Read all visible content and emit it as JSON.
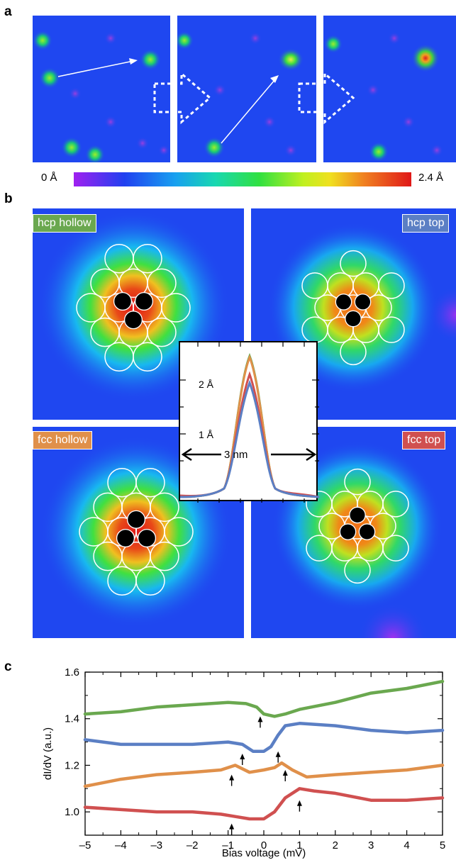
{
  "panel_a": {
    "letter": "a",
    "colorbar_min": "0 Å",
    "colorbar_max": "2.4 Å"
  },
  "panel_b": {
    "letter": "b",
    "labels": [
      {
        "text": "hcp hollow",
        "color": "#6aa84f"
      },
      {
        "text": "hcp top",
        "color": "#5b7fc4"
      },
      {
        "text": "fcc hollow",
        "color": "#e0904a"
      },
      {
        "text": "fcc top",
        "color": "#d05050"
      }
    ],
    "inset": {
      "y_ticks": [
        "2 Å",
        "1 Å"
      ],
      "scale_label": "3 nm"
    }
  },
  "panel_c": {
    "letter": "c"
  },
  "chart_data": {
    "type": "line",
    "xlabel": "Bias voltage (mV)",
    "ylabel": "dI/dV (a.u.)",
    "xlim": [
      -5,
      5
    ],
    "ylim": [
      0.9,
      1.6
    ],
    "x_ticks": [
      "–5",
      "–4",
      "–3",
      "–2",
      "–1",
      "0",
      "1",
      "2",
      "3",
      "4",
      "5"
    ],
    "y_ticks": [
      "1.0",
      "1.2",
      "1.4",
      "1.6"
    ],
    "series": [
      {
        "color": "#6aa84f",
        "x": [
          -5,
          -4,
          -3,
          -2,
          -1,
          -0.5,
          -0.2,
          0,
          0.3,
          0.6,
          1,
          2,
          3,
          4,
          5
        ],
        "y": [
          1.42,
          1.43,
          1.45,
          1.46,
          1.47,
          1.465,
          1.45,
          1.42,
          1.41,
          1.42,
          1.44,
          1.47,
          1.51,
          1.53,
          1.56
        ]
      },
      {
        "color": "#5b7fc4",
        "x": [
          -5,
          -4,
          -3,
          -2,
          -1,
          -0.6,
          -0.3,
          0,
          0.2,
          0.4,
          0.6,
          1,
          2,
          3,
          4,
          5
        ],
        "y": [
          1.31,
          1.29,
          1.29,
          1.29,
          1.3,
          1.29,
          1.26,
          1.26,
          1.28,
          1.33,
          1.37,
          1.38,
          1.37,
          1.35,
          1.34,
          1.35
        ]
      },
      {
        "color": "#e0904a",
        "x": [
          -5,
          -4,
          -3,
          -2,
          -1.2,
          -0.8,
          -0.4,
          0,
          0.3,
          0.5,
          0.8,
          1.2,
          2,
          3,
          4,
          5
        ],
        "y": [
          1.11,
          1.14,
          1.16,
          1.17,
          1.18,
          1.2,
          1.17,
          1.18,
          1.19,
          1.21,
          1.18,
          1.15,
          1.16,
          1.17,
          1.18,
          1.2
        ]
      },
      {
        "color": "#d05050",
        "x": [
          -5,
          -4,
          -3,
          -2,
          -1.2,
          -0.8,
          -0.4,
          0,
          0.3,
          0.6,
          1,
          1.4,
          2,
          3,
          4,
          5
        ],
        "y": [
          1.02,
          1.01,
          1.0,
          1.0,
          0.99,
          0.98,
          0.97,
          0.97,
          1.0,
          1.06,
          1.1,
          1.09,
          1.08,
          1.05,
          1.05,
          1.06
        ]
      }
    ],
    "arrows": [
      {
        "x": -0.1,
        "y": 1.41
      },
      {
        "x": -0.6,
        "y": 1.25
      },
      {
        "x": 0.4,
        "y": 1.26
      },
      {
        "x": -0.9,
        "y": 1.16
      },
      {
        "x": 0.6,
        "y": 1.18
      },
      {
        "x": -0.9,
        "y": 0.95
      },
      {
        "x": 1.0,
        "y": 1.05
      }
    ]
  }
}
